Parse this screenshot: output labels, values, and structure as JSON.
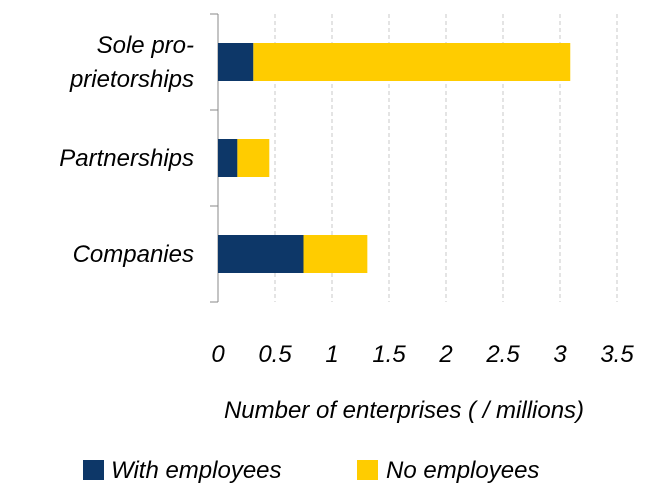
{
  "chart_data": {
    "type": "bar",
    "orientation": "horizontal",
    "stacked": true,
    "categories": [
      [
        "Sole pro-",
        "prietorships"
      ],
      [
        "Partnerships"
      ],
      [
        "Companies"
      ]
    ],
    "series": [
      {
        "name": "With employees",
        "color": "#0d3768",
        "values": [
          0.31,
          0.17,
          0.75
        ]
      },
      {
        "name": "No employees",
        "color": "#ffcc00",
        "values": [
          2.78,
          0.28,
          0.56
        ]
      }
    ],
    "xlabel": "Number of enterprises ( / millions)",
    "ylabel": "",
    "xlim": [
      0,
      3.5
    ],
    "xticks": [
      "0",
      "0.5",
      "1",
      "1.5",
      "2",
      "2.5",
      "3",
      "3.5"
    ],
    "grid": "vertical-dashed",
    "legend": "bottom"
  }
}
